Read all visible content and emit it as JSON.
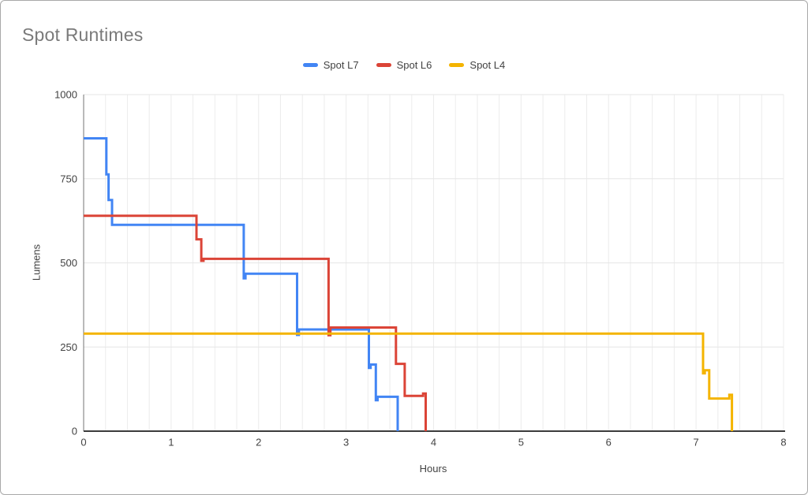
{
  "chart_data": {
    "type": "line",
    "subtype": "step",
    "title": "Spot Runtimes",
    "xlabel": "Hours",
    "ylabel": "Lumens",
    "xlim": [
      0,
      8
    ],
    "ylim": [
      0,
      1000
    ],
    "x_ticks": [
      0,
      1,
      2,
      3,
      4,
      5,
      6,
      7,
      8
    ],
    "y_ticks": [
      0,
      250,
      500,
      750,
      1000
    ],
    "x_minor_grid_step": 0.25,
    "grid": true,
    "legend_position": "top-center",
    "colors": {
      "grid_vertical": "#ececec",
      "grid_horizontal": "#e6e6e6",
      "x_axis_line": "#3c3c3c",
      "y_axis_line": "#757575",
      "title_text": "#7a7a7a",
      "label_text": "#424242"
    },
    "series": [
      {
        "name": "Spot L7",
        "color": "#4285F4",
        "points": [
          [
            0,
            870
          ],
          [
            0.26,
            870
          ],
          [
            0.26,
            763
          ],
          [
            0.285,
            763
          ],
          [
            0.285,
            687
          ],
          [
            0.325,
            687
          ],
          [
            0.325,
            613
          ],
          [
            1.83,
            613
          ],
          [
            1.83,
            454
          ],
          [
            1.85,
            454
          ],
          [
            1.85,
            468
          ],
          [
            2.44,
            468
          ],
          [
            2.44,
            286
          ],
          [
            2.46,
            286
          ],
          [
            2.46,
            302
          ],
          [
            3.26,
            302
          ],
          [
            3.26,
            188
          ],
          [
            3.28,
            188
          ],
          [
            3.28,
            198
          ],
          [
            3.34,
            198
          ],
          [
            3.34,
            92
          ],
          [
            3.36,
            92
          ],
          [
            3.36,
            102
          ],
          [
            3.59,
            102
          ],
          [
            3.59,
            0
          ]
        ]
      },
      {
        "name": "Spot L6",
        "color": "#DB4437",
        "points": [
          [
            0,
            640
          ],
          [
            1.29,
            640
          ],
          [
            1.29,
            570
          ],
          [
            1.345,
            570
          ],
          [
            1.345,
            506
          ],
          [
            1.37,
            506
          ],
          [
            1.37,
            512
          ],
          [
            2.8,
            512
          ],
          [
            2.8,
            285
          ],
          [
            2.82,
            285
          ],
          [
            2.82,
            308
          ],
          [
            3.57,
            308
          ],
          [
            3.57,
            200
          ],
          [
            3.67,
            200
          ],
          [
            3.67,
            105
          ],
          [
            3.88,
            105
          ],
          [
            3.88,
            112
          ],
          [
            3.91,
            112
          ],
          [
            3.91,
            0
          ]
        ]
      },
      {
        "name": "Spot L4",
        "color": "#F4B400",
        "points": [
          [
            0,
            290
          ],
          [
            7.08,
            290
          ],
          [
            7.08,
            172
          ],
          [
            7.1,
            172
          ],
          [
            7.1,
            181
          ],
          [
            7.15,
            181
          ],
          [
            7.15,
            97
          ],
          [
            7.38,
            97
          ],
          [
            7.38,
            108
          ],
          [
            7.41,
            108
          ],
          [
            7.41,
            0
          ]
        ]
      }
    ]
  }
}
